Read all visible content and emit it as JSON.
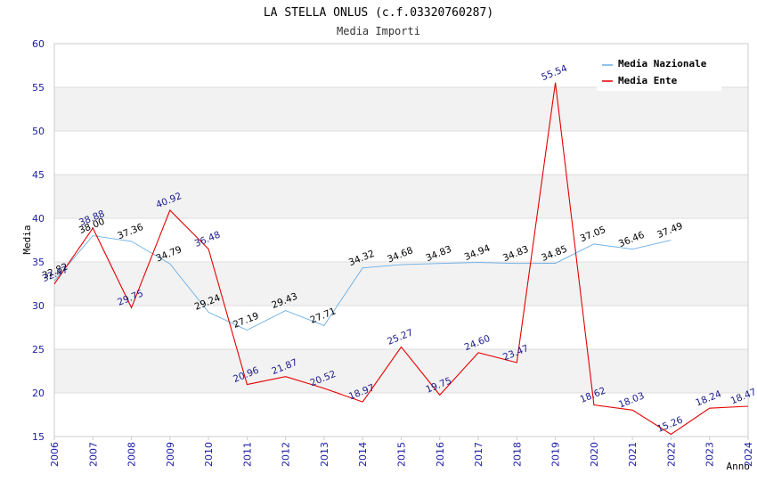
{
  "chart_data": {
    "type": "line",
    "title": "LA STELLA ONLUS (c.f.03320760287)",
    "subtitle": "Media Importi",
    "xlabel": "Anno",
    "ylabel": "Media",
    "ylim": [
      15,
      60
    ],
    "yticks": [
      "15",
      "20",
      "25",
      "30",
      "35",
      "40",
      "45",
      "50",
      "55",
      "60"
    ],
    "x": [
      "2006",
      "2007",
      "2008",
      "2009",
      "2010",
      "2011",
      "2012",
      "2013",
      "2014",
      "2015",
      "2016",
      "2017",
      "2018",
      "2019",
      "2020",
      "2021",
      "2022",
      "2023",
      "2024"
    ],
    "series": [
      {
        "name": "Media Nazionale",
        "color": "#6aaee6",
        "values": [
          32.82,
          38.0,
          37.36,
          34.79,
          29.24,
          27.19,
          29.43,
          27.71,
          34.32,
          34.68,
          34.83,
          34.94,
          34.83,
          34.85,
          37.05,
          36.46,
          37.49,
          null,
          null
        ],
        "labels": [
          "32.82",
          "38.00",
          "37.36",
          "34.79",
          "29.24",
          "27.19",
          "29.43",
          "27.71",
          "34.32",
          "34.68",
          "34.83",
          "34.94",
          "34.83",
          "34.85",
          "37.05",
          "36.46",
          "37.49",
          null,
          null
        ]
      },
      {
        "name": "Media Ente",
        "color": "#e60000",
        "values": [
          32.47,
          38.88,
          29.75,
          40.92,
          36.48,
          20.96,
          21.87,
          20.52,
          18.97,
          25.27,
          19.75,
          24.6,
          23.47,
          55.54,
          18.62,
          18.03,
          15.26,
          18.24,
          18.47
        ],
        "labels": [
          "32.47",
          "38.88",
          "29.75",
          "40.92",
          "36.48",
          "20.96",
          "21.87",
          "20.52",
          "18.97",
          "25.27",
          "19.75",
          "24.60",
          "23.47",
          "55.54",
          "18.62",
          "18.03",
          "15.26",
          "18.24",
          "18.47"
        ]
      }
    ],
    "grid": true,
    "legend": "top-right"
  }
}
